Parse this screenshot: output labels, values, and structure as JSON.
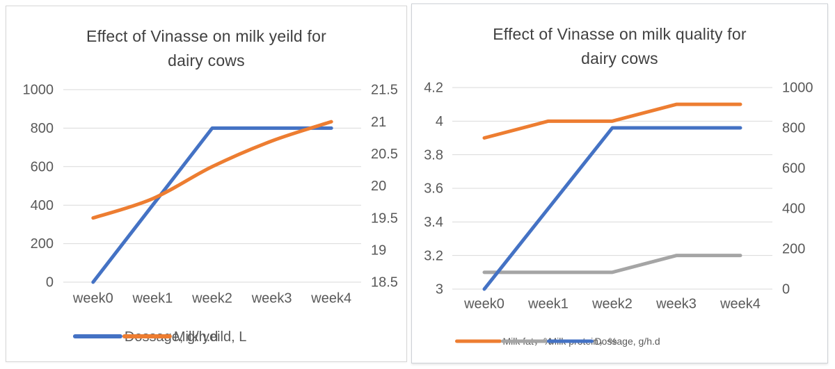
{
  "page": {
    "background": "#ffffff",
    "grid_color": "#d9d9d9",
    "tick_label_color": "#595959",
    "title_color": "#404040"
  },
  "chart_data": [
    {
      "type": "line",
      "title": "Effect of Vinasse on milk yeild for dairy cows",
      "title_lines": [
        "Effect of Vinasse on milk yeild for",
        "dairy cows"
      ],
      "categories": [
        "week0",
        "week1",
        "week2",
        "week3",
        "week4"
      ],
      "xlabel": "",
      "ylabel": "",
      "grid": true,
      "legend_position": "bottom",
      "left_axis": {
        "min": 0,
        "max": 1000,
        "ticks": [
          "1000",
          "800",
          "600",
          "400",
          "200",
          "0"
        ]
      },
      "right_axis": {
        "min": 18.5,
        "max": 21.5,
        "ticks": [
          "21.5",
          "21",
          "20.5",
          "20",
          "19.5",
          "19",
          "18.5"
        ]
      },
      "series": [
        {
          "name": "Dossage, g/h.d",
          "color": "#4472C4",
          "axis": "left",
          "smooth": false,
          "values": [
            0,
            400,
            800,
            800,
            800
          ]
        },
        {
          "name": "Milk yeild, L",
          "color": "#ED7D31",
          "axis": "right",
          "smooth": true,
          "values": [
            19.5,
            19.8,
            20.3,
            20.7,
            21
          ]
        }
      ]
    },
    {
      "type": "line",
      "title": "Effect of Vinasse on milk quality for dairy cows",
      "title_lines": [
        "Effect of Vinasse on milk quality for",
        "dairy cows"
      ],
      "categories": [
        "week0",
        "week1",
        "week2",
        "week3",
        "week4"
      ],
      "xlabel": "",
      "ylabel": "",
      "grid": true,
      "legend_position": "bottom",
      "left_axis": {
        "min": 3,
        "max": 4.2,
        "ticks": [
          "4.2",
          "4",
          "3.8",
          "3.6",
          "3.4",
          "3.2",
          "3"
        ]
      },
      "right_axis": {
        "min": 0,
        "max": 1000,
        "ticks": [
          "1000",
          "800",
          "600",
          "400",
          "200",
          "0"
        ]
      },
      "series": [
        {
          "name": "Milk fat，%",
          "color": "#ED7D31",
          "axis": "left",
          "smooth": false,
          "values": [
            3.9,
            4,
            4,
            4.1,
            4.1
          ]
        },
        {
          "name": "Milk protein，%",
          "color": "#A5A5A5",
          "axis": "left",
          "smooth": false,
          "values": [
            3.1,
            3.1,
            3.1,
            3.2,
            3.2
          ]
        },
        {
          "name": "Dossage, g/h.d",
          "color": "#4472C4",
          "axis": "right",
          "smooth": false,
          "values": [
            0,
            400,
            800,
            800,
            800
          ]
        }
      ]
    }
  ]
}
